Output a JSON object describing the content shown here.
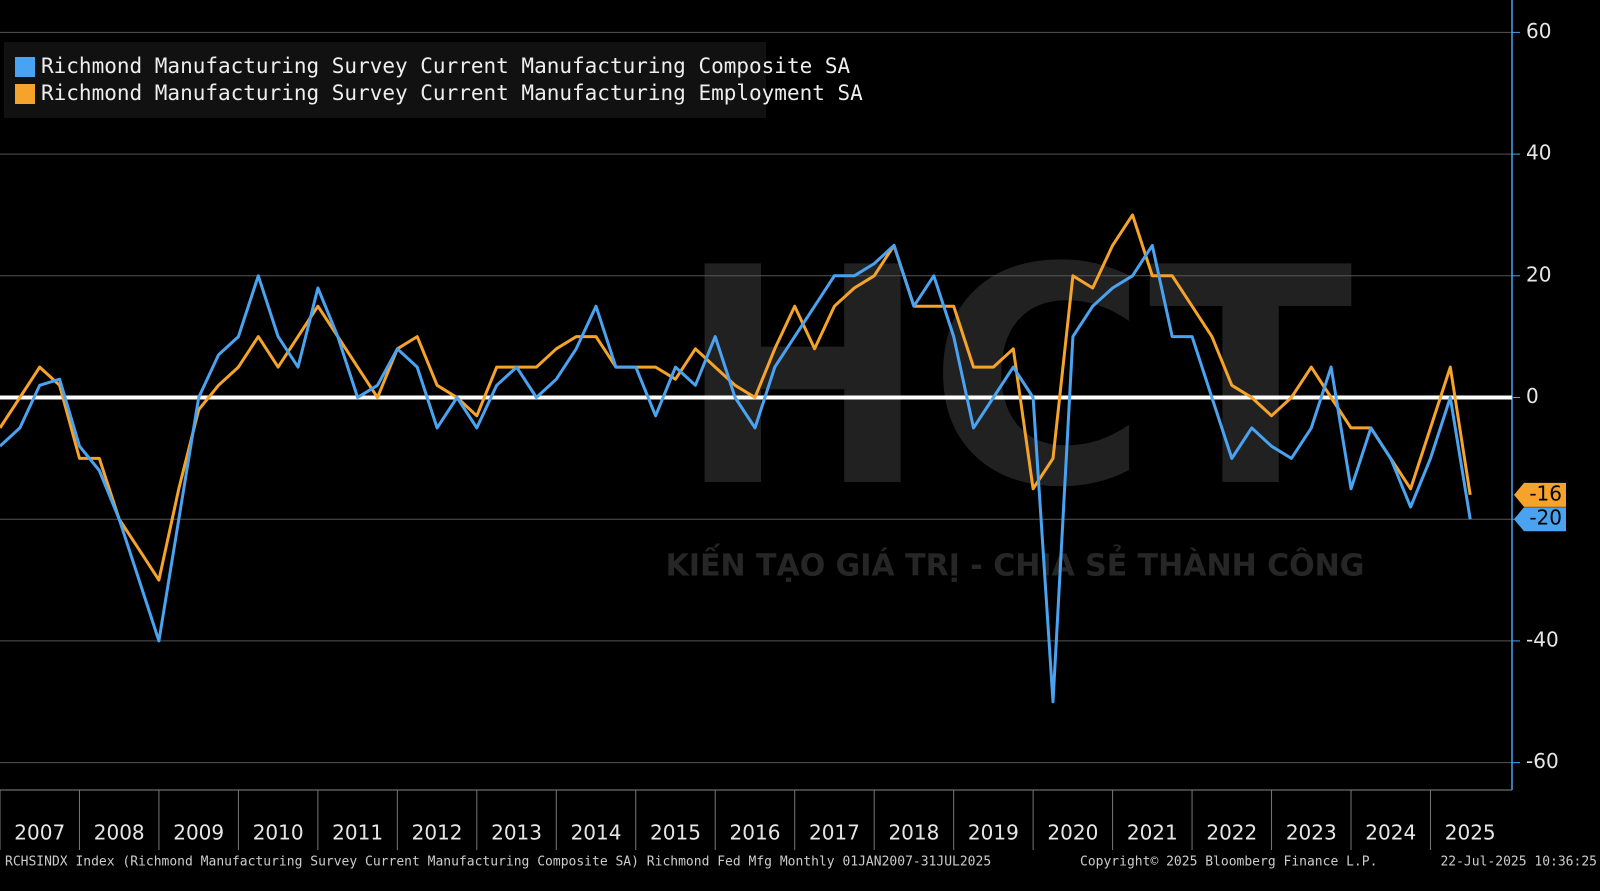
{
  "chart_data": {
    "type": "line",
    "x": [
      2007,
      2007.25,
      2007.5,
      2007.75,
      2008,
      2008.25,
      2008.5,
      2008.75,
      2009,
      2009.25,
      2009.5,
      2009.75,
      2010,
      2010.25,
      2010.5,
      2010.75,
      2011,
      2011.25,
      2011.5,
      2011.75,
      2012,
      2012.25,
      2012.5,
      2012.75,
      2013,
      2013.25,
      2013.5,
      2013.75,
      2014,
      2014.25,
      2014.5,
      2014.75,
      2015,
      2015.25,
      2015.5,
      2015.75,
      2016,
      2016.25,
      2016.5,
      2016.75,
      2017,
      2017.25,
      2017.5,
      2017.75,
      2018,
      2018.25,
      2018.5,
      2018.75,
      2019,
      2019.25,
      2019.5,
      2019.75,
      2020,
      2020.25,
      2020.5,
      2020.75,
      2021,
      2021.25,
      2021.5,
      2021.75,
      2022,
      2022.25,
      2022.5,
      2022.75,
      2023,
      2023.25,
      2023.5,
      2023.75,
      2024,
      2024.25,
      2024.5,
      2024.75,
      2025,
      2025.25,
      2025.5
    ],
    "series": [
      {
        "name": "Richmond Manufacturing Survey Current Manufacturing Composite SA",
        "color": "#4aa3f0",
        "values": [
          -8,
          -5,
          2,
          3,
          -8,
          -12,
          -20,
          -30,
          -40,
          -20,
          0,
          7,
          10,
          20,
          10,
          5,
          18,
          10,
          0,
          2,
          8,
          5,
          -5,
          0,
          -5,
          2,
          5,
          0,
          3,
          8,
          15,
          5,
          5,
          -3,
          5,
          2,
          10,
          0,
          -5,
          5,
          10,
          15,
          20,
          20,
          22,
          25,
          15,
          20,
          10,
          -5,
          0,
          5,
          0,
          -50,
          10,
          15,
          18,
          20,
          25,
          10,
          10,
          0,
          -10,
          -5,
          -8,
          -10,
          -5,
          5,
          -15,
          -5,
          -10,
          -18,
          -10,
          0,
          -20
        ]
      },
      {
        "name": "Richmond Manufacturing Survey Current Manufacturing Employment SA",
        "color": "#f5a32a",
        "values": [
          -5,
          0,
          5,
          2,
          -10,
          -10,
          -20,
          -25,
          -30,
          -15,
          -2,
          2,
          5,
          10,
          5,
          10,
          15,
          10,
          5,
          0,
          8,
          10,
          2,
          0,
          -3,
          5,
          5,
          5,
          8,
          10,
          10,
          5,
          5,
          5,
          3,
          8,
          5,
          2,
          0,
          8,
          15,
          8,
          15,
          18,
          20,
          25,
          15,
          15,
          15,
          5,
          5,
          8,
          -15,
          -10,
          20,
          18,
          25,
          30,
          20,
          20,
          15,
          10,
          2,
          0,
          -3,
          0,
          5,
          0,
          -5,
          -5,
          -10,
          -15,
          -5,
          5,
          -16
        ]
      }
    ],
    "xlim": [
      2007,
      2025.9
    ],
    "xticks": [
      2007,
      2008,
      2009,
      2010,
      2011,
      2012,
      2013,
      2014,
      2015,
      2016,
      2017,
      2018,
      2019,
      2020,
      2021,
      2022,
      2023,
      2024,
      2025
    ],
    "ylim": [
      -64.5,
      64.5
    ],
    "yticks": [
      60,
      40,
      20,
      0,
      -20,
      -40,
      -60
    ],
    "grid": true,
    "zero_line": true,
    "legend": "top-left"
  },
  "watermark": {
    "logo": "HCT",
    "slogan": "KIẾN TẠO GIÁ TRỊ - CHIA SẺ THÀNH CÔNG"
  },
  "footer": {
    "source": "RCHSINDX Index (Richmond Manufacturing Survey Current Manufacturing Composite SA) Richmond Fed Mfg  Monthly 01JAN2007-31JUL2025",
    "copyright": "Copyright© 2025 Bloomberg Finance L.P.",
    "timestamp": "22-Jul-2025 10:36:25"
  }
}
